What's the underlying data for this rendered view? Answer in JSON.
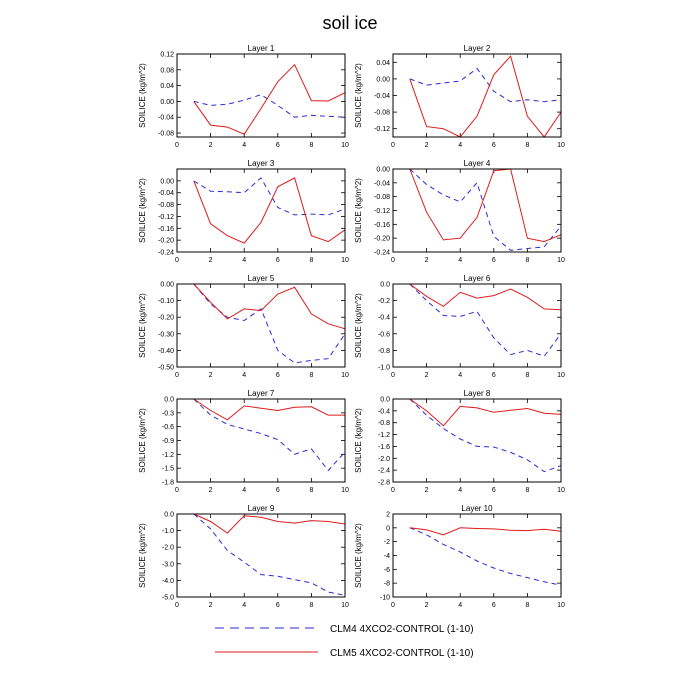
{
  "title": "soil ice",
  "colors": {
    "clm4": "#2b2bd6",
    "clm5": "#e01b1b",
    "frame": "#000000"
  },
  "legend": {
    "items": [
      {
        "label": "CLM4 4XCO2-CONTROL (1-10)",
        "style": "dashed",
        "color": "#2b2bd6"
      },
      {
        "label": "CLM5 4XCO2-CONTROL (1-10)",
        "style": "solid",
        "color": "#e01b1b"
      }
    ]
  },
  "chart_data": [
    {
      "type": "line",
      "title": "Layer 1",
      "ylabel": "SOILICE  (kg/m^2)",
      "x": [
        1,
        2,
        3,
        4,
        5,
        6,
        7,
        8,
        9,
        10
      ],
      "xlim": [
        0,
        10
      ],
      "xticks": [
        0,
        2,
        4,
        6,
        8,
        10
      ],
      "ylim": [
        -0.09,
        0.12
      ],
      "yticks": [
        -0.08,
        -0.04,
        0.0,
        0.04,
        0.08,
        0.12
      ],
      "ytick_labels": [
        "-0.08",
        "-0.04",
        "0.00",
        "0.04",
        "0.08",
        "0.12"
      ],
      "series": [
        {
          "name": "CLM4 4XCO2-CONTROL (1-10)",
          "values": [
            0.0,
            -0.01,
            -0.007,
            0.003,
            0.017,
            -0.01,
            -0.04,
            -0.035,
            -0.038,
            -0.04
          ]
        },
        {
          "name": "CLM5 4XCO2-CONTROL (1-10)",
          "values": [
            0.0,
            -0.06,
            -0.065,
            -0.083,
            -0.018,
            0.05,
            0.093,
            0.002,
            0.001,
            0.022
          ]
        }
      ]
    },
    {
      "type": "line",
      "title": "Layer 2",
      "ylabel": "SOILICE  (kg/m^2)",
      "x": [
        1,
        2,
        3,
        4,
        5,
        6,
        7,
        8,
        9,
        10
      ],
      "xlim": [
        0,
        10
      ],
      "xticks": [
        0,
        2,
        4,
        6,
        8,
        10
      ],
      "ylim": [
        -0.14,
        0.06
      ],
      "yticks": [
        -0.12,
        -0.08,
        -0.04,
        0.0,
        0.04
      ],
      "ytick_labels": [
        "-0.12",
        "-0.08",
        "-0.04",
        "0.00",
        "0.04"
      ],
      "series": [
        {
          "name": "CLM4 4XCO2-CONTROL (1-10)",
          "values": [
            0.0,
            -0.015,
            -0.01,
            -0.005,
            0.025,
            -0.03,
            -0.055,
            -0.05,
            -0.055,
            -0.05
          ]
        },
        {
          "name": "CLM5 4XCO2-CONTROL (1-10)",
          "values": [
            0.0,
            -0.115,
            -0.12,
            -0.14,
            -0.09,
            0.01,
            0.055,
            -0.09,
            -0.14,
            -0.08
          ]
        }
      ]
    },
    {
      "type": "line",
      "title": "Layer 3",
      "ylabel": "SOILICE  (kg/m^2)",
      "x": [
        1,
        2,
        3,
        4,
        5,
        6,
        7,
        8,
        9,
        10
      ],
      "xlim": [
        0,
        10
      ],
      "xticks": [
        0,
        2,
        4,
        6,
        8,
        10
      ],
      "ylim": [
        -0.24,
        0.04
      ],
      "yticks": [
        -0.24,
        -0.2,
        -0.16,
        -0.12,
        -0.08,
        -0.04,
        0.0
      ],
      "ytick_labels": [
        "-0.24",
        "-0.20",
        "-0.16",
        "-0.12",
        "-0.08",
        "-0.04",
        "0.00"
      ],
      "series": [
        {
          "name": "CLM4 4XCO2-CONTROL (1-10)",
          "values": [
            0.0,
            -0.035,
            -0.037,
            -0.04,
            0.01,
            -0.09,
            -0.115,
            -0.112,
            -0.115,
            -0.095
          ]
        },
        {
          "name": "CLM5 4XCO2-CONTROL (1-10)",
          "values": [
            0.0,
            -0.145,
            -0.185,
            -0.21,
            -0.14,
            -0.02,
            0.01,
            -0.185,
            -0.205,
            -0.165
          ]
        }
      ]
    },
    {
      "type": "line",
      "title": "Layer 4",
      "ylabel": "SOILICE  (kg/m^2)",
      "x": [
        1,
        2,
        3,
        4,
        5,
        6,
        7,
        8,
        9,
        10
      ],
      "xlim": [
        0,
        10
      ],
      "xticks": [
        0,
        2,
        4,
        6,
        8,
        10
      ],
      "ylim": [
        -0.24,
        0.0
      ],
      "yticks": [
        -0.24,
        -0.2,
        -0.16,
        -0.12,
        -0.08,
        -0.04,
        0.0
      ],
      "ytick_labels": [
        "-0.24",
        "-0.20",
        "-0.16",
        "-0.12",
        "-0.08",
        "-0.04",
        "0.00"
      ],
      "series": [
        {
          "name": "CLM4 4XCO2-CONTROL (1-10)",
          "values": [
            0.0,
            -0.045,
            -0.075,
            -0.095,
            -0.04,
            -0.195,
            -0.235,
            -0.23,
            -0.225,
            -0.165
          ]
        },
        {
          "name": "CLM5 4XCO2-CONTROL (1-10)",
          "values": [
            0.0,
            -0.125,
            -0.205,
            -0.2,
            -0.14,
            -0.005,
            0.0,
            -0.2,
            -0.21,
            -0.19
          ]
        }
      ]
    },
    {
      "type": "line",
      "title": "Layer 5",
      "ylabel": "SOILICE  (kg/m^2)",
      "x": [
        1,
        2,
        3,
        4,
        5,
        6,
        7,
        8,
        9,
        10
      ],
      "xlim": [
        0,
        10
      ],
      "xticks": [
        0,
        2,
        4,
        6,
        8,
        10
      ],
      "ylim": [
        -0.5,
        0.0
      ],
      "yticks": [
        -0.5,
        -0.4,
        -0.3,
        -0.2,
        -0.1,
        0.0
      ],
      "ytick_labels": [
        "-0.50",
        "-0.40",
        "-0.30",
        "-0.20",
        "-0.10",
        "0.00"
      ],
      "series": [
        {
          "name": "CLM4 4XCO2-CONTROL (1-10)",
          "values": [
            0.0,
            -0.12,
            -0.2,
            -0.22,
            -0.15,
            -0.4,
            -0.475,
            -0.46,
            -0.45,
            -0.3
          ]
        },
        {
          "name": "CLM5 4XCO2-CONTROL (1-10)",
          "values": [
            0.0,
            -0.11,
            -0.21,
            -0.15,
            -0.16,
            -0.06,
            -0.02,
            -0.18,
            -0.24,
            -0.27
          ]
        }
      ]
    },
    {
      "type": "line",
      "title": "Layer 6",
      "ylabel": "SOILICE  (kg/m^2)",
      "x": [
        1,
        2,
        3,
        4,
        5,
        6,
        7,
        8,
        9,
        10
      ],
      "xlim": [
        0,
        10
      ],
      "xticks": [
        0,
        2,
        4,
        6,
        8,
        10
      ],
      "ylim": [
        -1.0,
        0.0
      ],
      "yticks": [
        -1.0,
        -0.8,
        -0.6,
        -0.4,
        -0.2,
        0.0
      ],
      "ytick_labels": [
        "-1.0",
        "-0.8",
        "-0.6",
        "-0.4",
        "-0.2",
        "0.0"
      ],
      "series": [
        {
          "name": "CLM4 4XCO2-CONTROL (1-10)",
          "values": [
            0.0,
            -0.2,
            -0.38,
            -0.39,
            -0.33,
            -0.65,
            -0.85,
            -0.8,
            -0.87,
            -0.6
          ]
        },
        {
          "name": "CLM5 4XCO2-CONTROL (1-10)",
          "values": [
            0.0,
            -0.15,
            -0.27,
            -0.1,
            -0.17,
            -0.14,
            -0.06,
            -0.16,
            -0.3,
            -0.31
          ]
        }
      ]
    },
    {
      "type": "line",
      "title": "Layer 7",
      "ylabel": "SOILICE  (kg/m^2)",
      "x": [
        1,
        2,
        3,
        4,
        5,
        6,
        7,
        8,
        9,
        10
      ],
      "xlim": [
        0,
        10
      ],
      "xticks": [
        0,
        2,
        4,
        6,
        8,
        10
      ],
      "ylim": [
        -1.8,
        0.0
      ],
      "yticks": [
        -1.8,
        -1.5,
        -1.2,
        -0.9,
        -0.6,
        -0.3,
        0.0
      ],
      "ytick_labels": [
        "-1.8",
        "-1.5",
        "-1.2",
        "-0.9",
        "-0.6",
        "-0.3",
        "0.0"
      ],
      "series": [
        {
          "name": "CLM4 4XCO2-CONTROL (1-10)",
          "values": [
            0.0,
            -0.35,
            -0.55,
            -0.65,
            -0.75,
            -0.88,
            -1.2,
            -1.08,
            -1.55,
            -1.15
          ]
        },
        {
          "name": "CLM5 4XCO2-CONTROL (1-10)",
          "values": [
            0.0,
            -0.25,
            -0.45,
            -0.15,
            -0.2,
            -0.25,
            -0.18,
            -0.17,
            -0.35,
            -0.35
          ]
        }
      ]
    },
    {
      "type": "line",
      "title": "Layer 8",
      "ylabel": "SOILICE  (kg/m^2)",
      "x": [
        1,
        2,
        3,
        4,
        5,
        6,
        7,
        8,
        9,
        10
      ],
      "xlim": [
        0,
        10
      ],
      "xticks": [
        0,
        2,
        4,
        6,
        8,
        10
      ],
      "ylim": [
        -2.8,
        0.0
      ],
      "yticks": [
        -2.8,
        -2.4,
        -2.0,
        -1.6,
        -1.2,
        -0.8,
        -0.4,
        0.0
      ],
      "ytick_labels": [
        "-2.8",
        "-2.4",
        "-2.0",
        "-1.6",
        "-1.2",
        "-0.8",
        "-0.4",
        "0.0"
      ],
      "series": [
        {
          "name": "CLM4 4XCO2-CONTROL (1-10)",
          "values": [
            0.0,
            -0.55,
            -1.0,
            -1.35,
            -1.6,
            -1.62,
            -1.8,
            -2.05,
            -2.45,
            -2.25
          ]
        },
        {
          "name": "CLM5 4XCO2-CONTROL (1-10)",
          "values": [
            0.0,
            -0.4,
            -0.9,
            -0.25,
            -0.3,
            -0.45,
            -0.38,
            -0.32,
            -0.48,
            -0.52
          ]
        }
      ]
    },
    {
      "type": "line",
      "title": "Layer 9",
      "ylabel": "SOILICE  (kg/m^2)",
      "x": [
        1,
        2,
        3,
        4,
        5,
        6,
        7,
        8,
        9,
        10
      ],
      "xlim": [
        0,
        10
      ],
      "xticks": [
        0,
        2,
        4,
        6,
        8,
        10
      ],
      "ylim": [
        -5.0,
        0.0
      ],
      "yticks": [
        -5.0,
        -4.0,
        -3.0,
        -2.0,
        -1.0,
        0.0
      ],
      "ytick_labels": [
        "-5.0",
        "-4.0",
        "-3.0",
        "-2.0",
        "-1.0",
        "0.0"
      ],
      "series": [
        {
          "name": "CLM4 4XCO2-CONTROL (1-10)",
          "values": [
            0.0,
            -0.9,
            -2.2,
            -2.9,
            -3.65,
            -3.75,
            -3.95,
            -4.15,
            -4.7,
            -4.9
          ]
        },
        {
          "name": "CLM5 4XCO2-CONTROL (1-10)",
          "values": [
            0.0,
            -0.45,
            -1.15,
            -0.1,
            -0.2,
            -0.45,
            -0.55,
            -0.4,
            -0.45,
            -0.6
          ]
        }
      ]
    },
    {
      "type": "line",
      "title": "Layer 10",
      "ylabel": "SOILICE  (kg/m^2)",
      "x": [
        1,
        2,
        3,
        4,
        5,
        6,
        7,
        8,
        9,
        10
      ],
      "xlim": [
        0,
        10
      ],
      "xticks": [
        0,
        2,
        4,
        6,
        8,
        10
      ],
      "ylim": [
        -10,
        2
      ],
      "yticks": [
        -10,
        -8,
        -6,
        -4,
        -2,
        0,
        2
      ],
      "ytick_labels": [
        "-10",
        "-8",
        "-6",
        "-4",
        "-2",
        "0",
        "2"
      ],
      "series": [
        {
          "name": "CLM4 4XCO2-CONTROL (1-10)",
          "values": [
            0.0,
            -1.0,
            -2.4,
            -3.5,
            -4.8,
            -5.8,
            -6.6,
            -7.2,
            -7.8,
            -8.3
          ]
        },
        {
          "name": "CLM5 4XCO2-CONTROL (1-10)",
          "values": [
            0.0,
            -0.3,
            -1.0,
            0.0,
            -0.1,
            -0.15,
            -0.35,
            -0.4,
            -0.2,
            -0.5
          ]
        }
      ]
    }
  ]
}
